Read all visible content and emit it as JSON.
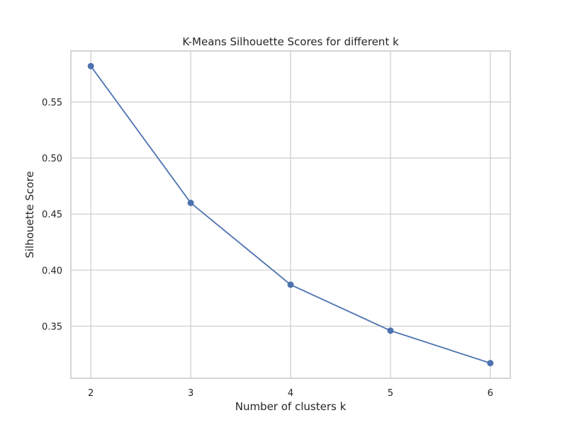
{
  "chart_data": {
    "type": "line",
    "title": "K-Means Silhouette Scores for different k",
    "xlabel": "Number of clusters k",
    "ylabel": "Silhouette Score",
    "x": [
      2,
      3,
      4,
      5,
      6
    ],
    "series": [
      {
        "values": [
          0.582,
          0.46,
          0.387,
          0.346,
          0.317
        ],
        "color": "#4c72b0",
        "marker": "circle"
      }
    ],
    "xlim": [
      1.8,
      6.2
    ],
    "ylim": [
      0.3035,
      0.5955
    ],
    "xticks": [
      2,
      3,
      4,
      5,
      6
    ],
    "xtick_labels": [
      "2",
      "3",
      "4",
      "5",
      "6"
    ],
    "yticks": [
      0.35,
      0.4,
      0.45,
      0.5,
      0.55
    ],
    "ytick_labels": [
      "0.35",
      "0.40",
      "0.45",
      "0.50",
      "0.55"
    ],
    "grid": true,
    "legend": "none"
  }
}
